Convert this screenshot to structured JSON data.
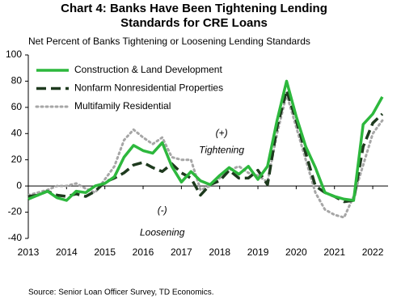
{
  "chart_data": {
    "type": "line",
    "title": "Chart 4: Banks Have Been Tightening Lending Standards for CRE Loans",
    "subtitle": "Net Percent of Banks Tightening or Loosening Lending Standards",
    "source": "Source: Senior Loan Officer Survey, TD Economics.",
    "annotations": [
      "(+)",
      "Tightening",
      "(-)",
      "Loosening"
    ],
    "x": [
      2013,
      2013.25,
      2013.5,
      2013.75,
      2014,
      2014.25,
      2014.5,
      2014.75,
      2015,
      2015.25,
      2015.5,
      2015.75,
      2016,
      2016.25,
      2016.5,
      2016.75,
      2017,
      2017.25,
      2017.5,
      2017.75,
      2018,
      2018.25,
      2018.5,
      2018.75,
      2019,
      2019.25,
      2019.5,
      2019.75,
      2020,
      2020.25,
      2020.5,
      2020.75,
      2021,
      2021.25,
      2021.5,
      2021.75,
      2022,
      2022.25
    ],
    "series": [
      {
        "name": "Construction & Land Development",
        "color": "#2db83d",
        "style": "solid",
        "values": [
          -10,
          -7,
          -4,
          -9,
          -11,
          -4,
          -5,
          0,
          2,
          7,
          22,
          31,
          27,
          25,
          33,
          15,
          3,
          11,
          4,
          1,
          8,
          14,
          9,
          15,
          5,
          15,
          50,
          80,
          53,
          30,
          14,
          -5,
          -8,
          -10,
          -11,
          47,
          55,
          68
        ]
      },
      {
        "name": "Nonfarm Nonresidential Properties",
        "color": "#1e3a1e",
        "style": "dashed",
        "values": [
          -8,
          -7,
          -4,
          -7,
          -8,
          -6,
          -8,
          -4,
          3,
          6,
          10,
          16,
          18,
          14,
          11,
          17,
          10,
          6,
          -7,
          1,
          4,
          12,
          6,
          6,
          12,
          1,
          45,
          73,
          50,
          25,
          0,
          -5,
          -8,
          -12,
          -11,
          30,
          48,
          55
        ]
      },
      {
        "name": "Multifamily Residential",
        "color": "#a6a6a6",
        "style": "dotted",
        "values": [
          -7,
          -5,
          -3,
          0,
          0,
          2,
          -2,
          -5,
          5,
          15,
          35,
          43,
          37,
          32,
          37,
          22,
          20,
          20,
          -3,
          0,
          6,
          12,
          15,
          10,
          8,
          3,
          40,
          70,
          45,
          20,
          -5,
          -18,
          -22,
          -24,
          -8,
          16,
          40,
          50
        ]
      }
    ],
    "xlim": [
      2013,
      2022.4
    ],
    "xticks": [
      2013,
      2014,
      2015,
      2016,
      2017,
      2018,
      2019,
      2020,
      2021,
      2022
    ],
    "ylim": [
      -40,
      100
    ],
    "yticks": [
      -40,
      -20,
      0,
      20,
      40,
      60,
      80,
      100
    ]
  }
}
